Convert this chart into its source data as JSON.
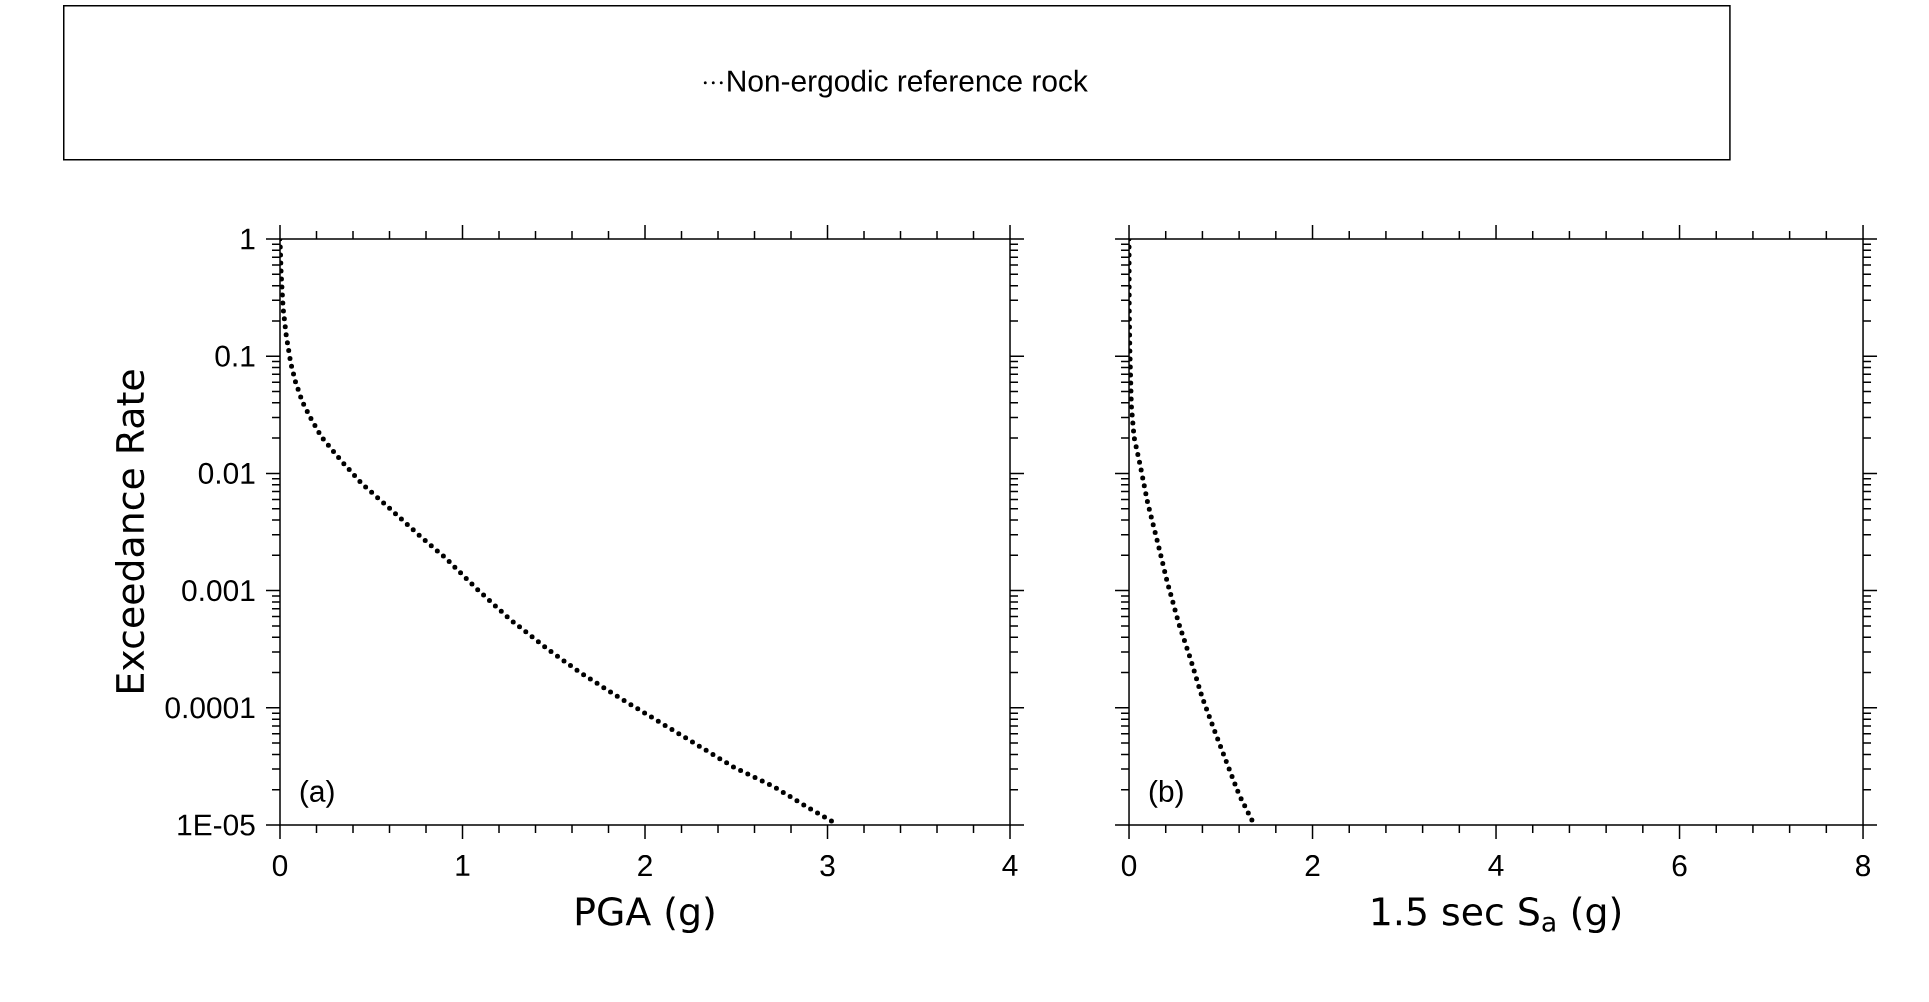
{
  "chart_data": [
    {
      "type": "line",
      "xlabel": "PGA (g)",
      "ylabel": "Exceedance Rate",
      "log": "y",
      "legend": "top",
      "line_style": "dotted",
      "xlim": [
        0,
        4
      ],
      "ylim": [
        1e-05,
        1
      ],
      "xticks": [
        0,
        1,
        2,
        3,
        4
      ],
      "yticks": [
        1,
        0.1,
        0.01,
        0.001,
        0.0001,
        {
          "value": 1e-05,
          "label": "1E-05"
        }
      ],
      "annotations": [
        "(a)"
      ],
      "series": [
        {
          "name": "Non-ergodic reference rock",
          "color": "#000000",
          "x": [
            0,
            0.006,
            0.017,
            0.034,
            0.059,
            0.085,
            0.123,
            0.165,
            0.228,
            0.334,
            0.45,
            0.588,
            0.757,
            0.905,
            1.074,
            1.264,
            1.476,
            1.645,
            1.856,
            2.068,
            2.279,
            2.49,
            2.702,
            2.913,
            3.05
          ],
          "values": [
            1,
            0.513,
            0.257,
            0.151,
            0.0871,
            0.0603,
            0.0407,
            0.0302,
            0.0204,
            0.0129,
            0.00813,
            0.00525,
            0.00302,
            0.00191,
            0.00105,
            0.000562,
            0.000309,
            0.0002,
            0.000123,
            7.76e-05,
            4.9e-05,
            3.09e-05,
            2.14e-05,
            1.35e-05,
            1.02e-05
          ]
        }
      ]
    },
    {
      "type": "line",
      "xlabel": "1.5 sec S$_{a}$ (g)",
      "log": "y",
      "line_style": "dotted",
      "tick_labels": "x",
      "xlim": [
        0,
        8
      ],
      "ylim": [
        1e-05,
        1
      ],
      "xticks": [
        0,
        2,
        4,
        6,
        8
      ],
      "yticks": [
        1,
        0.1,
        0.01,
        0.001,
        0.0001,
        1e-05
      ],
      "annotations": [
        "(b)"
      ],
      "series": [
        {
          "color": "#000000",
          "x": [
            0,
            0.002,
            0.008,
            0.025,
            0.055,
            0.119,
            0.203,
            0.309,
            0.415,
            0.542,
            0.669,
            0.797,
            0.924,
            1.051,
            1.199,
            1.347
          ],
          "values": [
            1,
            0.257,
            0.12,
            0.038,
            0.0204,
            0.012,
            0.00562,
            0.00263,
            0.0012,
            0.000525,
            0.000263,
            0.000123,
            6.61e-05,
            3.63e-05,
            1.82e-05,
            1.07e-05
          ]
        }
      ]
    }
  ]
}
